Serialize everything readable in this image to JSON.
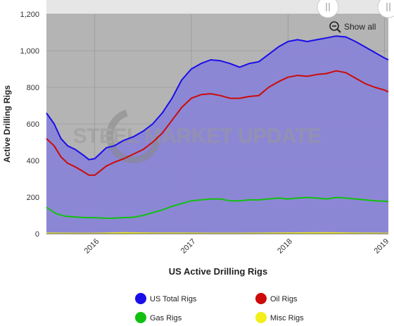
{
  "chart_data": {
    "type": "area",
    "title": "",
    "xlabel": "US Active Drilling Rigs",
    "ylabel": "Active Drilling Rigs",
    "ylim": [
      0,
      1200
    ],
    "yticks": [
      "0",
      "200",
      "400",
      "600",
      "800",
      "1,000",
      "1,200"
    ],
    "ytick_values": [
      0,
      200,
      400,
      600,
      800,
      1000,
      1200
    ],
    "xlim": [
      2015.5,
      2019.04
    ],
    "xticks": [
      "2016",
      "2017",
      "2018",
      "2019"
    ],
    "xtick_values": [
      2016,
      2017,
      2018,
      2019
    ],
    "grid": true,
    "legend_position": "bottom",
    "watermark": "STEEL MARKET UPDATE",
    "series": [
      {
        "name": "US Total Rigs",
        "color": "#1a0ee8",
        "x": [
          2015.5,
          2015.58,
          2015.65,
          2015.72,
          2015.8,
          2015.88,
          2015.94,
          2016.0,
          2016.06,
          2016.12,
          2016.2,
          2016.3,
          2016.4,
          2016.5,
          2016.6,
          2016.7,
          2016.8,
          2016.9,
          2017.0,
          2017.1,
          2017.2,
          2017.3,
          2017.4,
          2017.5,
          2017.6,
          2017.7,
          2017.8,
          2017.9,
          2018.0,
          2018.1,
          2018.2,
          2018.3,
          2018.4,
          2018.5,
          2018.6,
          2018.7,
          2018.8,
          2018.9,
          2019.0,
          2019.04
        ],
        "values": [
          660,
          600,
          520,
          480,
          460,
          430,
          405,
          410,
          440,
          470,
          480,
          510,
          530,
          560,
          600,
          660,
          740,
          840,
          900,
          930,
          950,
          945,
          930,
          910,
          930,
          940,
          980,
          1020,
          1050,
          1060,
          1050,
          1060,
          1070,
          1080,
          1075,
          1050,
          1020,
          990,
          960,
          950
        ]
      },
      {
        "name": "Oil Rigs",
        "color": "#cc0a0a",
        "x": [
          2015.5,
          2015.58,
          2015.65,
          2015.72,
          2015.8,
          2015.88,
          2015.94,
          2016.0,
          2016.06,
          2016.12,
          2016.2,
          2016.3,
          2016.4,
          2016.5,
          2016.6,
          2016.7,
          2016.8,
          2016.9,
          2017.0,
          2017.1,
          2017.2,
          2017.3,
          2017.4,
          2017.5,
          2017.6,
          2017.7,
          2017.8,
          2017.9,
          2018.0,
          2018.1,
          2018.2,
          2018.3,
          2018.4,
          2018.5,
          2018.6,
          2018.7,
          2018.8,
          2018.9,
          2019.0,
          2019.04
        ],
        "values": [
          520,
          480,
          420,
          385,
          365,
          340,
          320,
          320,
          345,
          370,
          390,
          410,
          435,
          460,
          500,
          550,
          620,
          690,
          740,
          760,
          765,
          755,
          740,
          740,
          750,
          755,
          800,
          830,
          855,
          865,
          860,
          870,
          875,
          890,
          880,
          850,
          820,
          800,
          785,
          775
        ]
      },
      {
        "name": "Gas Rigs",
        "color": "#11c011",
        "x": [
          2015.5,
          2015.6,
          2015.7,
          2015.8,
          2015.9,
          2016.0,
          2016.1,
          2016.2,
          2016.3,
          2016.4,
          2016.5,
          2016.6,
          2016.7,
          2016.8,
          2016.9,
          2017.0,
          2017.1,
          2017.2,
          2017.3,
          2017.4,
          2017.5,
          2017.6,
          2017.7,
          2017.8,
          2017.9,
          2018.0,
          2018.1,
          2018.2,
          2018.3,
          2018.4,
          2018.5,
          2018.6,
          2018.7,
          2018.8,
          2018.9,
          2019.0,
          2019.04
        ],
        "values": [
          145,
          110,
          95,
          92,
          88,
          88,
          85,
          85,
          88,
          90,
          100,
          115,
          130,
          150,
          165,
          180,
          185,
          190,
          190,
          180,
          180,
          185,
          185,
          190,
          195,
          190,
          195,
          198,
          195,
          190,
          198,
          195,
          190,
          185,
          180,
          178,
          175
        ]
      },
      {
        "name": "Misc Rigs",
        "color": "#f2ef1a",
        "x": [
          2015.5,
          2015.8,
          2016.0,
          2016.3,
          2016.6,
          2016.9,
          2017.2,
          2017.5,
          2017.8,
          2018.1,
          2018.4,
          2018.7,
          2019.04
        ],
        "values": [
          3,
          2,
          2,
          5,
          3,
          3,
          2,
          2,
          3,
          4,
          5,
          3,
          2
        ]
      }
    ]
  },
  "ui": {
    "show_all_label": "Show all",
    "legend": {
      "total": "US Total Rigs",
      "oil": "Oil Rigs",
      "gas": "Gas Rigs",
      "misc": "Misc Rigs"
    }
  }
}
